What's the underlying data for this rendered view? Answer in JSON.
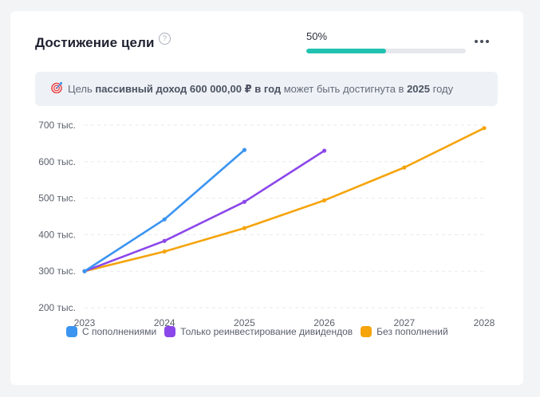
{
  "card": {
    "title": "Достижение цели",
    "help_icon": "question-circle-icon",
    "help_glyph": "?",
    "progress_label": "50%",
    "progress_value": 0.5,
    "more_icon": "more-dots-icon"
  },
  "banner": {
    "icon": "target-icon",
    "prefix": "Цель ",
    "goal_bold": "пассивный доход 600 000,00 ₽ в год",
    "middle": " может быть достигнута в ",
    "year_bold": "2025",
    "suffix": " году"
  },
  "colors": {
    "accent": "#22c2b1",
    "series_with_topups": "#3b94f0",
    "series_reinvest": "#8b47ea",
    "series_no_topups": "#f5a40c",
    "grid": "#e8eaee",
    "tick_text": "#5b606c"
  },
  "chart_data": {
    "type": "line",
    "x": [
      2023,
      2024,
      2025,
      2026,
      2027,
      2028
    ],
    "xticks": [
      "2023",
      "2024",
      "2025",
      "2026",
      "2027",
      "2028"
    ],
    "yticks": [
      200000,
      300000,
      400000,
      500000,
      600000,
      700000
    ],
    "ytick_labels": [
      "200 тыс.",
      "300 тыс.",
      "400 тыс.",
      "500 тыс.",
      "600 тыс.",
      "700 тыс."
    ],
    "ylim": [
      200000,
      700000
    ],
    "grid": true,
    "legend": "bottom",
    "series": [
      {
        "name": "С пополнениями",
        "color": "#3b94f0",
        "x": [
          2023,
          2024,
          2025
        ],
        "values": [
          300000,
          442000,
          632000
        ]
      },
      {
        "name": "Только реинвестирование дивидендов",
        "color": "#8b47ea",
        "x": [
          2023,
          2024,
          2025,
          2026
        ],
        "values": [
          300000,
          383000,
          490000,
          630000
        ]
      },
      {
        "name": "Без пополнений",
        "color": "#f5a40c",
        "x": [
          2023,
          2024,
          2025,
          2026,
          2027,
          2028
        ],
        "values": [
          300000,
          354000,
          418000,
          494000,
          584000,
          692000
        ]
      }
    ]
  }
}
